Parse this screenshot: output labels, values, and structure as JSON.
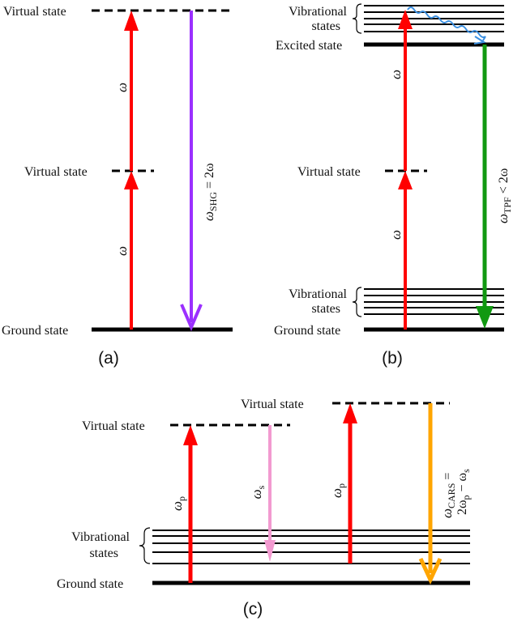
{
  "colors": {
    "level": "#000000",
    "pump": "#ff0000",
    "shg": "#9b30ff",
    "tpf": "#119911",
    "stokes": "#f29ad0",
    "cars": "#ffa500",
    "relax": "#3b8fe0"
  },
  "panel_a": {
    "caption": "(a)",
    "virtual_state_top": "Virtual state",
    "virtual_state_mid": "Virtual state",
    "ground_state": "Ground state",
    "omega_1": "ω",
    "omega_2": "ω",
    "emission_symbol": "ω",
    "emission_sub": "SHG",
    "emission_rel": " = 2ω"
  },
  "panel_b": {
    "caption": "(b)",
    "vibrational_top_1": "Vibrational",
    "vibrational_top_2": "states",
    "excited_state": "Excited state",
    "virtual_state": "Virtual state",
    "vibrational_bottom_1": "Vibrational",
    "vibrational_bottom_2": "states",
    "ground_state": "Ground state",
    "omega_1": "ω",
    "omega_2": "ω",
    "emission_symbol": "ω",
    "emission_sub": "TPF",
    "emission_rel": " < 2ω"
  },
  "panel_c": {
    "caption": "(c)",
    "virtual_state_left": "Virtual state",
    "virtual_state_right": "Virtual state",
    "vibrational_1": "Vibrational",
    "vibrational_2": "states",
    "ground_state": "Ground state",
    "pump_symbol": "ω",
    "pump_sub": "p",
    "stokes_symbol": "ω",
    "stokes_sub": "s",
    "pump2_symbol": "ω",
    "pump2_sub": "p",
    "cars_line1_symbol": "ω",
    "cars_line1_sub": "CARS",
    "cars_line1_rel": " =",
    "cars_line2_a": "2ω",
    "cars_line2_a_sub": "p",
    "cars_line2_b": " − ω",
    "cars_line2_b_sub": "s"
  }
}
